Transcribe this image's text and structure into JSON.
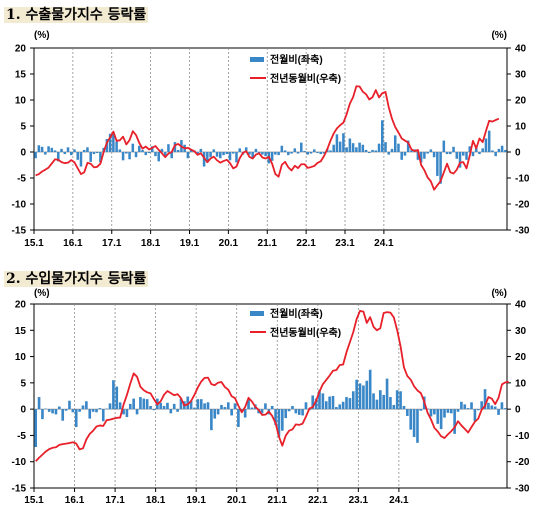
{
  "sections": [
    {
      "title_num": "1.",
      "title_text": "수출물가지수 등락률"
    },
    {
      "title_num": "2.",
      "title_text": "수입물가지수 등락률"
    }
  ],
  "colors": {
    "bar": "#3a87c8",
    "line": "#e8202a",
    "grid": "#8c8c8c",
    "axis": "#000000"
  },
  "chart_data": [
    {
      "type": "bar",
      "title": "수출물가지수 등락률",
      "left_unit": "(%)",
      "right_unit": "(%)",
      "ylim_left": [
        -15,
        20
      ],
      "yticks_left": [
        -15,
        -10,
        -5,
        0,
        5,
        10,
        15,
        20
      ],
      "ylim_right": [
        -30,
        40
      ],
      "yticks_right": [
        -30,
        -20,
        -10,
        0,
        10,
        20,
        30,
        40
      ],
      "x_tick_labels": [
        "15.1",
        "16.1",
        "17.1",
        "18.1",
        "19.1",
        "20.1",
        "21.1",
        "22.1",
        "23.1",
        "24.1"
      ],
      "legend_position": "top-center",
      "series": [
        {
          "name": "전월비(좌축)",
          "type": "bar",
          "axis": "left",
          "color": "#3a87c8",
          "values": [
            -1.2,
            1.3,
            1.0,
            -0.5,
            1.1,
            0.8,
            0.3,
            -1.8,
            0.6,
            -0.4,
            0.9,
            -0.6,
            0.5,
            -1.5,
            -2.8,
            0.4,
            0.9,
            -1.9,
            -0.4,
            -0.2,
            -2.0,
            0.8,
            2.5,
            3.5,
            3.8,
            2.0,
            0.5,
            -1.6,
            -0.3,
            -1.4,
            1.6,
            -1.0,
            1.2,
            0.4,
            -0.6,
            -0.2,
            1.1,
            -0.8,
            -1.8,
            0.6,
            -0.8,
            1.5,
            -1.2,
            1.9,
            0.4,
            2.3,
            1.4,
            -1.2,
            0.4,
            0.3,
            -0.4,
            0.6,
            -2.8,
            -2.0,
            -1.0,
            0.5,
            -0.9,
            -1.2,
            -0.6,
            -0.4,
            -1.6,
            -0.3,
            -2.0,
            0.7,
            -0.5,
            0.9,
            -0.5,
            -1.3,
            0.6,
            -0.2,
            -0.5,
            -0.8,
            -2.2,
            -1.7,
            -0.5,
            -0.6,
            1.2,
            0.3,
            -0.6,
            -0.3,
            0.7,
            -0.3,
            1.8,
            0.2,
            -0.5,
            -0.3,
            0.5,
            -0.2,
            -0.4,
            -0.3,
            0.6,
            0.3,
            1.4,
            3.4,
            2.0,
            3.6,
            0.9,
            2.6,
            1.7,
            0.9,
            1.8,
            1.4,
            0.4,
            -0.2,
            0.4,
            0.3,
            1.6,
            6.1,
            1.9,
            -0.5,
            0.6,
            3.2,
            1.6,
            -1.5,
            -0.7,
            2.2,
            0.3,
            0.5,
            -1.5,
            -2.0,
            -1.3,
            -0.3,
            0.5,
            -1.0,
            -4.6,
            -6.1,
            2.2,
            -0.4,
            -0.4,
            1.0,
            -1.3,
            -3.0,
            -0.7,
            -1.5,
            1.1,
            -0.8,
            0.9,
            -0.4,
            0.7,
            2.6,
            4.1,
            0.3,
            -0.8,
            0.6,
            1.2,
            0.4
          ]
        },
        {
          "name": "전년동월비(우축)",
          "type": "line",
          "axis": "right",
          "color": "#e8202a",
          "values": [
            -9.0,
            -8.5,
            -7.5,
            -6.8,
            -6.0,
            -4.4,
            -2.8,
            -3.0,
            -3.9,
            -4.3,
            -4.1,
            -3.1,
            -4.0,
            -6.3,
            -8.5,
            -7.8,
            -4.2,
            -4.5,
            -5.9,
            -5.7,
            -4.5,
            0.0,
            3.6,
            5.6,
            7.8,
            4.3,
            4.5,
            5.9,
            2.9,
            4.6,
            8.0,
            6.5,
            3.5,
            1.3,
            2.1,
            1.0,
            1.6,
            2.3,
            0.8,
            -0.5,
            -2.0,
            -0.6,
            0.0,
            2.6,
            3.1,
            2.1,
            1.4,
            1.6,
            0.9,
            0.3,
            -1.1,
            -0.5,
            -2.2,
            -3.9,
            -2.5,
            -1.8,
            -3.2,
            -4.1,
            -3.5,
            -3.0,
            -4.3,
            -6.3,
            -5.6,
            -2.4,
            -0.3,
            0.3,
            -1.9,
            -2.5,
            -1.0,
            -0.5,
            -2.1,
            -2.5,
            -1.9,
            -4.5,
            -8.5,
            -9.5,
            -4.9,
            -3.8,
            -5.9,
            -7.1,
            -5.3,
            -6.2,
            -4.7,
            -4.7,
            -6.1,
            -5.8,
            -5.4,
            -4.2,
            -3.6,
            -1.6,
            1.0,
            4.3,
            7.1,
            9.1,
            10.3,
            11.3,
            14.5,
            18.6,
            21.1,
            25.3,
            25.2,
            23.2,
            22.2,
            20.2,
            21.1,
            23.8,
            21.0,
            22.6,
            23.1,
            17.2,
            12.8,
            9.6,
            7.5,
            5.2,
            4.4,
            3.6,
            1.0,
            0.4,
            0.8,
            -5.0,
            -7.0,
            -9.8,
            -11.3,
            -14.5,
            -12.8,
            -11.2,
            -7.8,
            -4.5,
            -7.8,
            -8.3,
            -6.8,
            -4.1,
            -3.9,
            -6.3,
            -1.4,
            4.3,
            1.4,
            5.2,
            3.8,
            8.1,
            12.0,
            11.7,
            12.3,
            12.8
          ]
        }
      ]
    },
    {
      "type": "bar",
      "title": "수입물가지수 등락률",
      "left_unit": "(%)",
      "right_unit": "(%)",
      "ylim_left": [
        -15,
        20
      ],
      "yticks_left": [
        -15,
        -10,
        -5,
        0,
        5,
        10,
        15,
        20
      ],
      "ylim_right": [
        -30,
        40
      ],
      "yticks_right": [
        -30,
        -20,
        -10,
        0,
        10,
        20,
        30,
        40
      ],
      "x_tick_labels": [
        "15.1",
        "16.1",
        "17.1",
        "18.1",
        "19.1",
        "20.1",
        "21.1",
        "22.1",
        "23.1",
        "24.1"
      ],
      "legend_position": "top-center",
      "series": [
        {
          "name": "전월비(좌축)",
          "type": "bar",
          "axis": "left",
          "color": "#3a87c8",
          "values": [
            -7.2,
            2.3,
            -1.9,
            0.1,
            -0.5,
            -0.8,
            -1.0,
            0.5,
            -2.2,
            -0.3,
            1.6,
            -0.6,
            -3.4,
            -0.5,
            0.7,
            1.5,
            -1.8,
            -0.5,
            -0.6,
            0.2,
            -2.3,
            0.1,
            1.1,
            5.5,
            4.3,
            1.3,
            -1.0,
            -1.5,
            1.0,
            2.0,
            -1.0,
            2.3,
            2.0,
            1.9,
            0.6,
            -0.2,
            2.0,
            1.2,
            0.6,
            1.2,
            -0.8,
            1.0,
            -0.5,
            2.0,
            1.5,
            2.4,
            1.6,
            0.3,
            1.9,
            1.9,
            1.1,
            1.3,
            -4.0,
            -1.8,
            -1.0,
            0.8,
            0.4,
            1.3,
            -1.2,
            1.1,
            -3.4,
            -0.4,
            -1.6,
            1.8,
            0.3,
            0.9,
            -0.8,
            -0.8,
            1.1,
            -1.0,
            0.6,
            -3.0,
            -5.2,
            -4.1,
            -1.7,
            -0.4,
            0.6,
            -0.8,
            -1.1,
            -1.2,
            1.3,
            -0.2,
            2.6,
            2.0,
            3.6,
            3.0,
            1.5,
            2.4,
            2.5,
            0.4,
            0.9,
            1.4,
            2.3,
            2.1,
            3.4,
            5.6,
            4.9,
            4.5,
            5.4,
            7.5,
            3.0,
            1.8,
            3.6,
            2.7,
            5.8,
            2.3,
            0.8,
            3.6,
            3.4,
            0.6,
            -1.3,
            -3.9,
            -5.3,
            -6.4,
            -0.3,
            2.4,
            0.1,
            -1.4,
            -1.0,
            -2.8,
            -3.8,
            -1.6,
            -0.7,
            -0.8,
            -4.7,
            -0.5,
            1.4,
            0.9,
            0.2,
            1.3,
            -2.3,
            -0.2,
            1.5,
            3.8,
            1.2,
            0.7,
            0.5,
            -1.1,
            1.3,
            0.2
          ]
        },
        {
          "name": "전년동월비(우축)",
          "type": "line",
          "axis": "right",
          "color": "#e8202a",
          "values": [
            -19.8,
            -18.5,
            -17.3,
            -16.1,
            -15.2,
            -14.7,
            -14.5,
            -13.6,
            -13.3,
            -13.1,
            -12.9,
            -12.6,
            -13.1,
            -15.3,
            -14.9,
            -11.5,
            -9.4,
            -8.2,
            -6.6,
            -6.2,
            -6.4,
            -4.2,
            -4.0,
            -3.6,
            -3.3,
            -3.2,
            1.7,
            5.4,
            9.7,
            13.6,
            12.3,
            8.5,
            7.2,
            6.4,
            6.0,
            3.8,
            1.8,
            3.0,
            5.5,
            6.9,
            6.1,
            5.3,
            5.7,
            4.2,
            1.4,
            1.8,
            3.1,
            5.5,
            8.3,
            10.5,
            11.9,
            12.0,
            9.5,
            9.1,
            10.1,
            10.3,
            8.4,
            7.4,
            4.9,
            4.2,
            1.3,
            -1.2,
            0.8,
            4.3,
            2.9,
            0.9,
            -0.3,
            -2.2,
            -2.1,
            -0.9,
            -2.6,
            -5.3,
            -10.5,
            -13.9,
            -10.1,
            -8.2,
            -7.7,
            -5.8,
            -6.0,
            -5.5,
            -2.8,
            0.2,
            0.8,
            3.2,
            6.7,
            9.5,
            11.1,
            12.8,
            14.6,
            14.9,
            16.8,
            17.0,
            21.7,
            25.5,
            29.3,
            34.3,
            37.4,
            37.1,
            32.8,
            35.0,
            31.3,
            30.0,
            30.8,
            36.6,
            36.9,
            36.7,
            34.9,
            30.0,
            23.9,
            15.9,
            12.6,
            11.2,
            8.7,
            7.1,
            6.1,
            2.9,
            -1.4,
            -3.9,
            -7.1,
            -8.5,
            -10.3,
            -11.0,
            -9.6,
            -8.4,
            -6.9,
            -4.6,
            -6.2,
            -7.5,
            -8.9,
            -6.8,
            -4.8,
            -3.6,
            -0.2,
            1.3,
            4.6,
            4.0,
            1.9,
            4.3,
            9.4,
            10.2,
            10.4
          ]
        }
      ]
    }
  ]
}
